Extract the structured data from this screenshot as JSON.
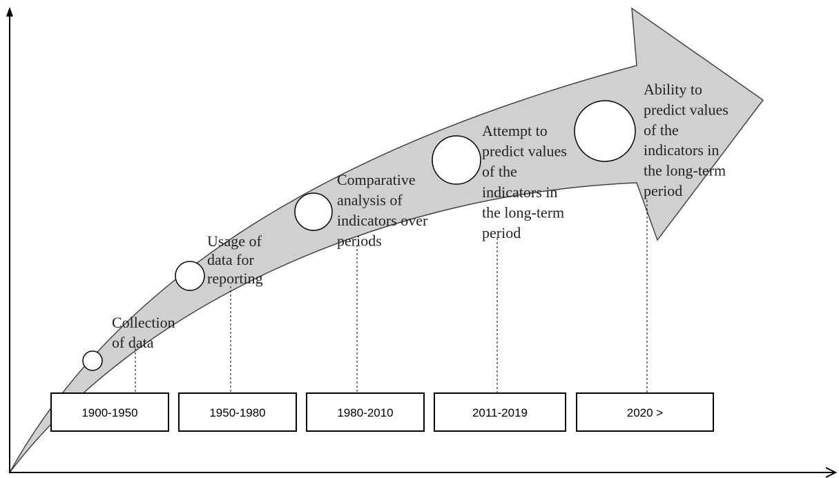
{
  "stages": [
    {
      "period": "1900-1950",
      "lines": [
        "Collection",
        "of data"
      ]
    },
    {
      "period": "1950-1980",
      "lines": [
        "Usage of",
        "data for",
        "reporting"
      ]
    },
    {
      "period": "1980-2010",
      "lines": [
        "Comparative",
        "analysis of",
        "indicators over",
        "periods"
      ]
    },
    {
      "period": "2011-2019",
      "lines": [
        "Attempt to",
        "predict values",
        "of the",
        "indicators in",
        "the long-term",
        "period"
      ]
    },
    {
      "period": "2020 >",
      "lines": [
        "Ability to",
        "predict values",
        "of the",
        "indicators in",
        "the long-term",
        "period"
      ]
    }
  ]
}
